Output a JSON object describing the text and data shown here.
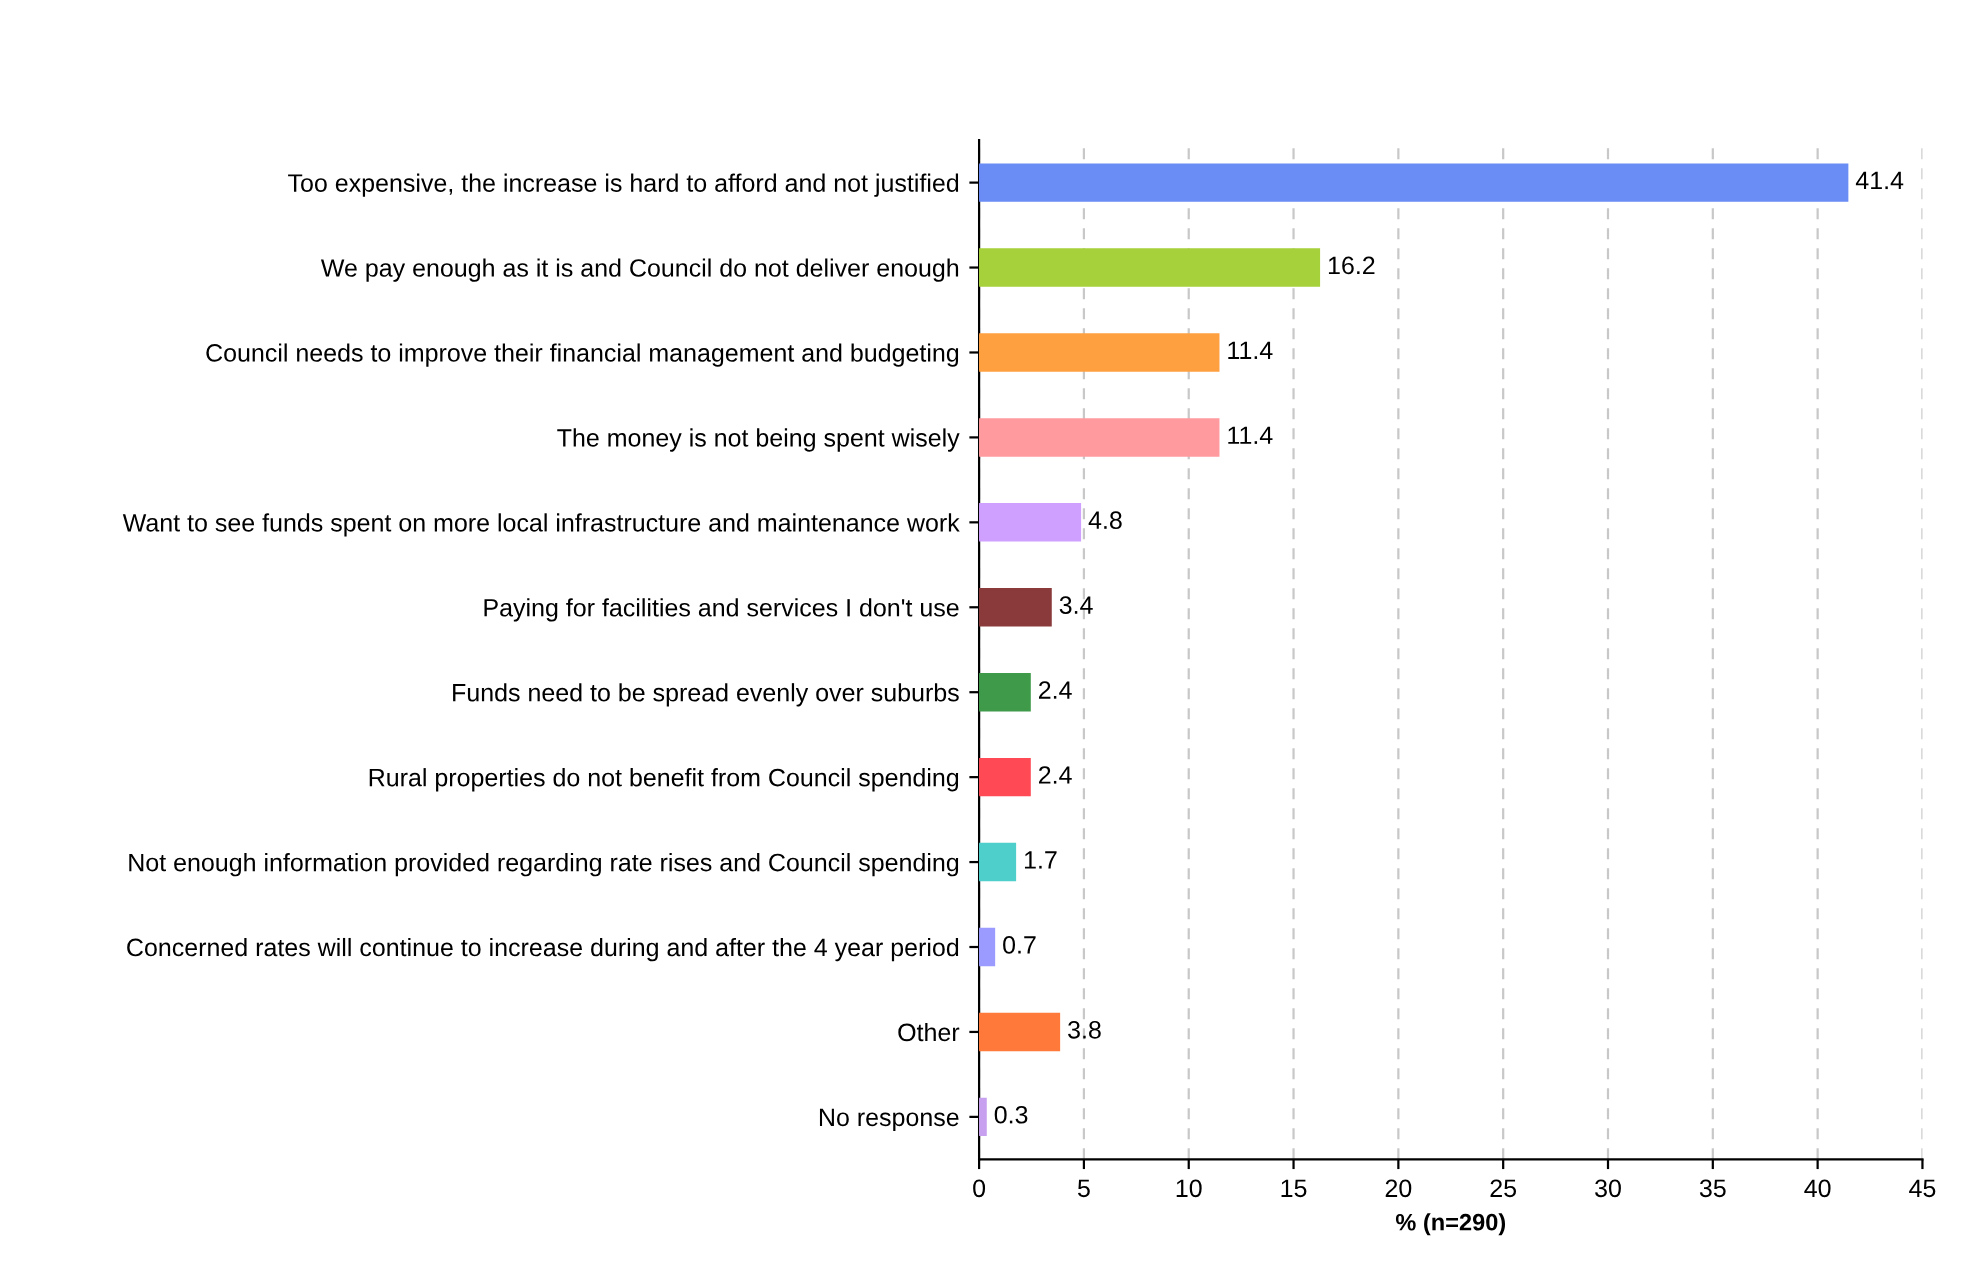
{
  "chart_data": {
    "type": "bar",
    "orientation": "horizontal",
    "xlabel": "% (n=290)",
    "categories": [
      "Too expensive, the increase is hard to afford and not justified",
      "We pay enough as it is and Council do not deliver enough",
      "Council needs to improve their financial management and budgeting",
      "The money is not being spent wisely",
      "Want to see funds spent on more local infrastructure and maintenance work",
      "Paying for facilities and services I don't use",
      "Funds need to be spread evenly over suburbs",
      "Rural properties do not benefit from Council spending",
      "Not enough information provided regarding rate rises and Council spending",
      "Concerned rates will continue to increase during and after the 4 year period",
      "Other",
      "No response"
    ],
    "values": [
      41.4,
      16.2,
      11.4,
      11.4,
      4.8,
      3.4,
      2.4,
      2.4,
      1.7,
      0.7,
      3.8,
      0.3
    ],
    "colors": [
      "#6a8cf5",
      "#a6d13a",
      "#ffa040",
      "#ff9a9e",
      "#cfa0ff",
      "#8a3a3a",
      "#3f9a4a",
      "#ff4a55",
      "#4ecfcc",
      "#9a9aff",
      "#ff7a3a",
      "#c8a0f0"
    ],
    "xlim": [
      0,
      45
    ],
    "xticks": [
      0,
      5,
      10,
      15,
      20,
      25,
      30,
      35,
      40,
      45
    ],
    "grid": "x",
    "data_labels": true
  }
}
